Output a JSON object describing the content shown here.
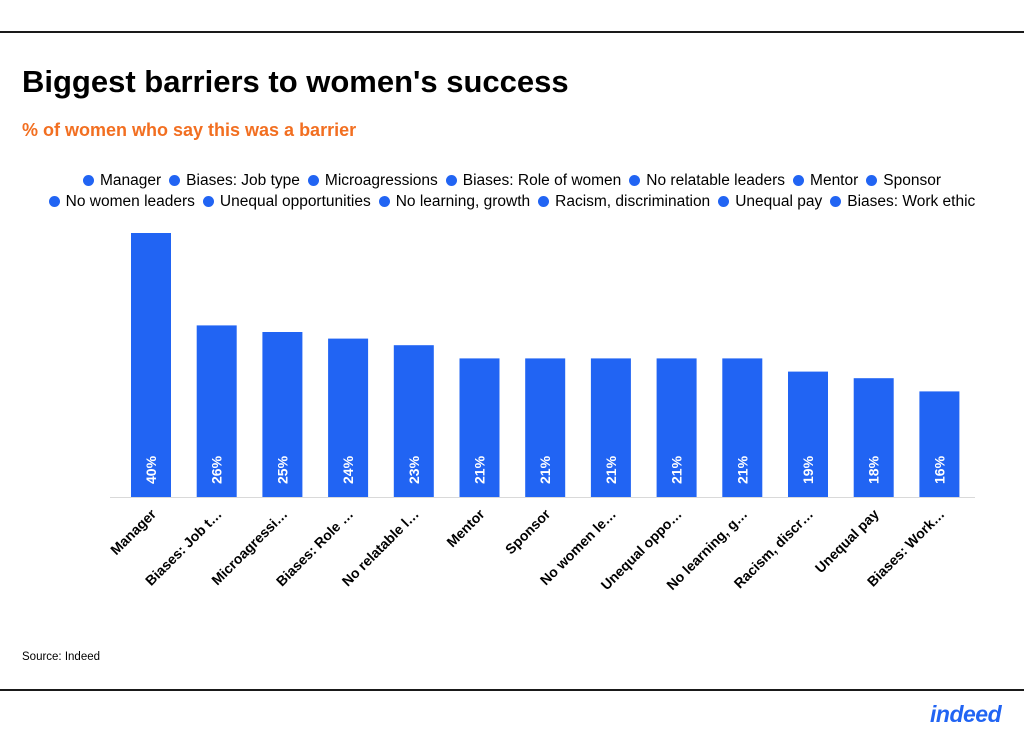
{
  "header": {
    "title": "Biggest barriers to women's success",
    "subtitle": "% of women who say this was a barrier"
  },
  "footer": {
    "source": "Source: Indeed",
    "logo_text": "indeed"
  },
  "colors": {
    "bar": "#2164f3",
    "subtitle": "#f26f21",
    "logo": "#2164f3"
  },
  "chart_data": {
    "type": "bar",
    "title": "Biggest barriers to women's success",
    "subtitle": "% of women who say this was a barrier",
    "categories": [
      "Manager",
      "Biases: Job t…",
      "Microagressi…",
      "Biases: Role …",
      "No relatable l…",
      "Mentor",
      "Sponsor",
      "No women le…",
      "Unequal oppo…",
      "No learning, g…",
      "Racism, discr…",
      "Unequal pay",
      "Biases: Work…"
    ],
    "legend": [
      "Manager",
      "Biases: Job type",
      "Microagressions",
      "Biases: Role of women",
      "No relatable leaders",
      "Mentor",
      "Sponsor",
      "No women leaders",
      "Unequal opportunities",
      "No learning, growth",
      "Racism, discrimination",
      "Unequal pay",
      "Biases: Work ethic"
    ],
    "values": [
      40,
      26,
      25,
      24,
      23,
      21,
      21,
      21,
      21,
      21,
      19,
      18,
      16
    ],
    "data_labels": [
      "40%",
      "26%",
      "25%",
      "24%",
      "23%",
      "21%",
      "21%",
      "21%",
      "21%",
      "21%",
      "19%",
      "18%",
      "16%"
    ],
    "ylim": [
      0,
      40
    ],
    "grid": false,
    "legend_position": "top"
  }
}
